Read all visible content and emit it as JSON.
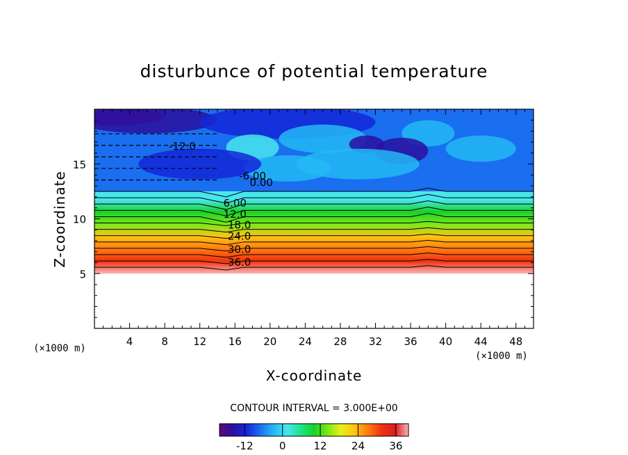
{
  "chart_data": {
    "type": "heatmap",
    "title": "disturbunce of potential temperature",
    "xlabel": "X-coordinate",
    "ylabel": "Z-coordinate",
    "x_unit_left": "(×1000 m)",
    "x_unit_right": "(×1000 m)",
    "xlim": [
      0,
      50
    ],
    "ylim": [
      0,
      20
    ],
    "xticks": [
      "4",
      "8",
      "12",
      "16",
      "20",
      "24",
      "28",
      "32",
      "36",
      "40",
      "44",
      "48"
    ],
    "yticks": [
      "5",
      "10",
      "15"
    ],
    "contour_interval_text": "CONTOUR INTERVAL = 3.000E+00",
    "contour_labels": [
      "-12.0",
      "-6.00",
      "0.00",
      "6.00",
      "12.0",
      "18.0",
      "24.0",
      "30.0",
      "36.0"
    ],
    "colorbar": {
      "range": [
        -20,
        40
      ],
      "ticks": [
        "-12",
        "0",
        "12",
        "24",
        "36"
      ]
    },
    "colormap": [
      "#5a0a78",
      "#2a10a0",
      "#1428d8",
      "#1a6ef0",
      "#23b8f5",
      "#48e6ee",
      "#1ee48c",
      "#18d228",
      "#7ae81a",
      "#e8f018",
      "#ffc312",
      "#ff7a10",
      "#f03210",
      "#dc1e1e",
      "#f8b4b4"
    ],
    "field_description": {
      "terrain_top_z": 5,
      "cold_layer_z": [
        12.5,
        20
      ],
      "stable_layer_gradient": "values decrease from 39 near z=5 to 0 near z=12.5"
    },
    "approx_field": {
      "x": [
        0,
        8,
        14,
        16,
        20,
        24,
        30,
        36,
        40,
        48,
        50
      ],
      "z": [
        5,
        6,
        7,
        8,
        9,
        10,
        11,
        12,
        13,
        14,
        16,
        18,
        20
      ],
      "values": [
        [
          39,
          39,
          39,
          39,
          39,
          39,
          39,
          39,
          39,
          39,
          39
        ],
        [
          34,
          34,
          34,
          33,
          34,
          34,
          34,
          34,
          34,
          34,
          34
        ],
        [
          29,
          29,
          29,
          28,
          29,
          29,
          29,
          29,
          29,
          29,
          29
        ],
        [
          24,
          24,
          24,
          23,
          24,
          24,
          24,
          24,
          24,
          24,
          24
        ],
        [
          19,
          19,
          19,
          18,
          19,
          19,
          19,
          19,
          19,
          19,
          19
        ],
        [
          14,
          14,
          14,
          12,
          14,
          14,
          14,
          14,
          14,
          14,
          14
        ],
        [
          9,
          9,
          9,
          6,
          9,
          9,
          9,
          9,
          9,
          9,
          9
        ],
        [
          4,
          4,
          4,
          2,
          4,
          4,
          4,
          4,
          5,
          4,
          4
        ],
        [
          -2,
          -2,
          -2,
          -1,
          -3,
          -2,
          -2,
          -2,
          -2,
          -2,
          -2
        ],
        [
          -8,
          -8,
          -6,
          -4,
          -6,
          -5,
          -6,
          -7,
          -6,
          -7,
          -8
        ],
        [
          -12,
          -12,
          -12,
          -9,
          -8,
          -6,
          -8,
          -10,
          -9,
          -11,
          -12
        ],
        [
          -13,
          -12,
          -12,
          -6,
          -7,
          -8,
          -5,
          -9,
          -8,
          -9,
          -12
        ],
        [
          -15,
          -16,
          -14,
          -13,
          -12,
          -12,
          -14,
          -13,
          -12,
          -14,
          -14
        ]
      ]
    }
  }
}
